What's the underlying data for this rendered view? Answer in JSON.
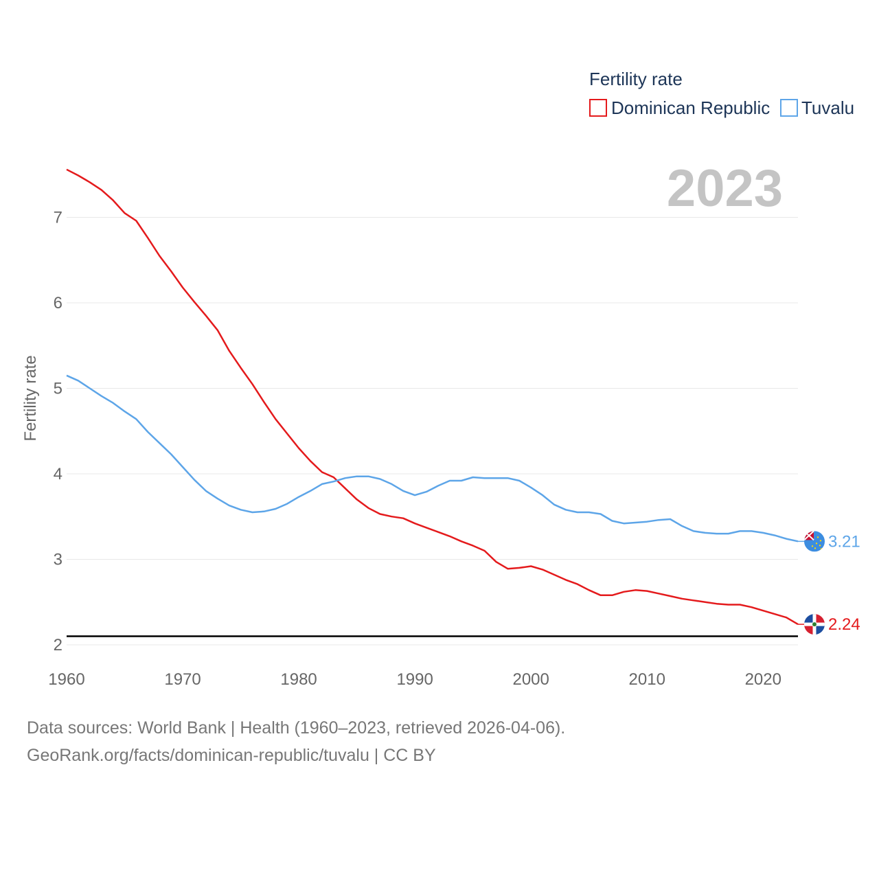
{
  "chart_data": {
    "type": "line",
    "legend": {
      "title": "Fertility rate",
      "placement": "top-right"
    },
    "ylabel": "Fertility rate",
    "xlabel": "",
    "year_label": "2023",
    "xlim": [
      1960,
      2023
    ],
    "ylim": [
      2,
      7.55
    ],
    "x_ticks": [
      1960,
      1970,
      1980,
      1990,
      2000,
      2010,
      2020
    ],
    "y_ticks": [
      2,
      3,
      4,
      5,
      6,
      7
    ],
    "reference_line": 2.1,
    "x": [
      1960,
      1961,
      1962,
      1963,
      1964,
      1965,
      1966,
      1967,
      1968,
      1969,
      1970,
      1971,
      1972,
      1973,
      1974,
      1975,
      1976,
      1977,
      1978,
      1979,
      1980,
      1981,
      1982,
      1983,
      1984,
      1985,
      1986,
      1987,
      1988,
      1989,
      1990,
      1991,
      1992,
      1993,
      1994,
      1995,
      1996,
      1997,
      1998,
      1999,
      2000,
      2001,
      2002,
      2003,
      2004,
      2005,
      2006,
      2007,
      2008,
      2009,
      2010,
      2011,
      2012,
      2013,
      2014,
      2015,
      2016,
      2017,
      2018,
      2019,
      2020,
      2021,
      2022,
      2023
    ],
    "series": [
      {
        "name": "Dominican Republic",
        "color": "#e41a1c",
        "end_label": "2.24",
        "values": [
          7.56,
          7.49,
          7.41,
          7.32,
          7.2,
          7.05,
          6.96,
          6.76,
          6.55,
          6.37,
          6.18,
          6.01,
          5.85,
          5.68,
          5.44,
          5.24,
          5.05,
          4.84,
          4.64,
          4.47,
          4.3,
          4.15,
          4.02,
          3.96,
          3.83,
          3.7,
          3.6,
          3.53,
          3.5,
          3.48,
          3.42,
          3.37,
          3.32,
          3.27,
          3.21,
          3.16,
          3.1,
          2.97,
          2.89,
          2.9,
          2.92,
          2.88,
          2.82,
          2.76,
          2.71,
          2.64,
          2.58,
          2.58,
          2.62,
          2.64,
          2.63,
          2.6,
          2.57,
          2.54,
          2.52,
          2.5,
          2.48,
          2.47,
          2.47,
          2.44,
          2.4,
          2.36,
          2.32,
          2.24
        ]
      },
      {
        "name": "Tuvalu",
        "color": "#5da5e8",
        "end_label": "3.21",
        "values": [
          5.15,
          5.09,
          5.0,
          4.91,
          4.83,
          4.73,
          4.64,
          4.49,
          4.36,
          4.23,
          4.08,
          3.93,
          3.8,
          3.71,
          3.63,
          3.58,
          3.55,
          3.56,
          3.59,
          3.65,
          3.73,
          3.8,
          3.88,
          3.91,
          3.95,
          3.97,
          3.97,
          3.94,
          3.88,
          3.8,
          3.75,
          3.79,
          3.86,
          3.92,
          3.92,
          3.96,
          3.95,
          3.95,
          3.95,
          3.92,
          3.84,
          3.75,
          3.64,
          3.58,
          3.55,
          3.55,
          3.53,
          3.45,
          3.42,
          3.43,
          3.44,
          3.46,
          3.47,
          3.39,
          3.33,
          3.31,
          3.3,
          3.3,
          3.33,
          3.33,
          3.31,
          3.28,
          3.24,
          3.21
        ]
      }
    ]
  },
  "source": {
    "line1": "Data sources: World Bank | Health (1960–2023, retrieved 2026-04-06).",
    "line2": "GeoRank.org/facts/dominican-republic/tuvalu | CC BY"
  }
}
